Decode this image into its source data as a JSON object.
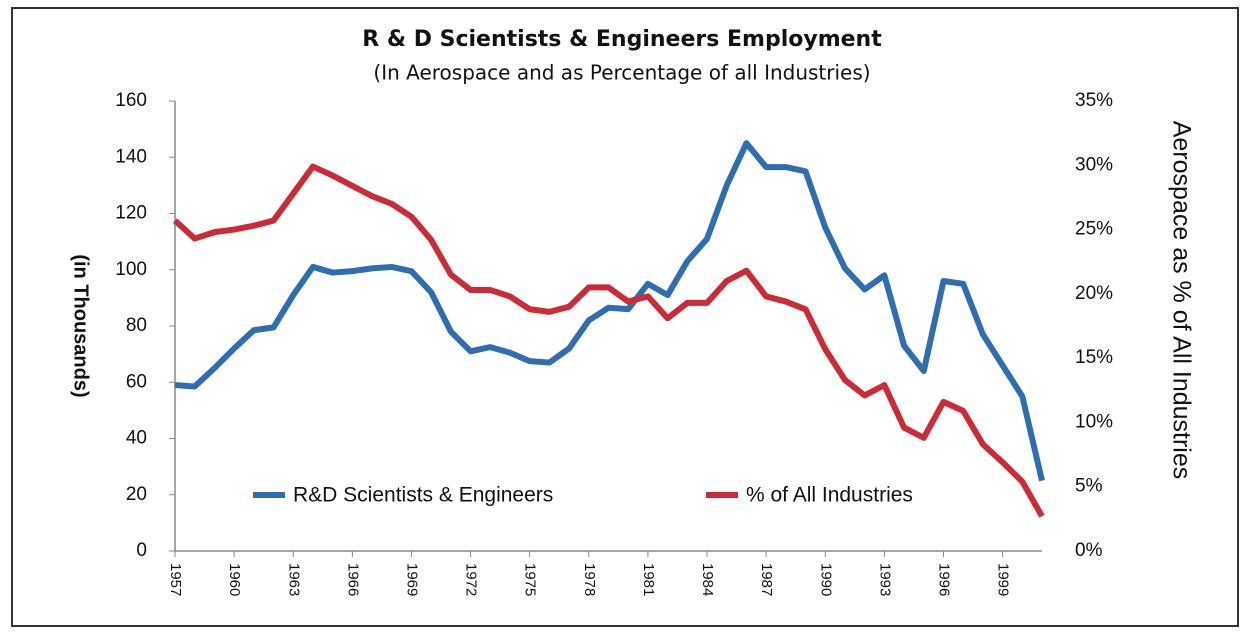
{
  "chart_data": {
    "type": "line",
    "title": "R & D Scientists & Engineers Employment",
    "subtitle": "(In Aerospace and as Percentage of all Industries)",
    "y_label": "(in Thousands)",
    "y2_label": "Aerospace as % of All Industries",
    "x": [
      1957,
      1958,
      1959,
      1960,
      1961,
      1962,
      1963,
      1964,
      1965,
      1966,
      1967,
      1968,
      1969,
      1970,
      1971,
      1972,
      1973,
      1974,
      1975,
      1976,
      1977,
      1978,
      1979,
      1980,
      1981,
      1982,
      1983,
      1984,
      1985,
      1986,
      1987,
      1988,
      1989,
      1990,
      1991,
      1992,
      1993,
      1994,
      1995,
      1996,
      1997,
      1998,
      1999,
      2000,
      2001
    ],
    "xlim": [
      1957,
      2001
    ],
    "xticks": [
      1957,
      1960,
      1963,
      1966,
      1969,
      1972,
      1975,
      1978,
      1981,
      1984,
      1987,
      1990,
      1993,
      1996,
      1999
    ],
    "ylim": [
      0,
      160
    ],
    "yticks": [
      0,
      20,
      40,
      60,
      80,
      100,
      120,
      140,
      160
    ],
    "y2lim": [
      0,
      35
    ],
    "y2ticks": [
      {
        "value": 0,
        "label": "0%"
      },
      {
        "value": 5,
        "label": "5%"
      },
      {
        "value": 10,
        "label": "10%"
      },
      {
        "value": 15,
        "label": "15%"
      },
      {
        "value": 20,
        "label": "20%"
      },
      {
        "value": 25,
        "label": "25%"
      },
      {
        "value": 30,
        "label": "30%"
      },
      {
        "value": 35,
        "label": "35%"
      }
    ],
    "series": [
      {
        "name": "R&D Scientists & Engineers",
        "color": "#2e6db0",
        "values": [
          59,
          58.5,
          65,
          72,
          78.5,
          79.5,
          91,
          101,
          99,
          99.5,
          100.5,
          101,
          99.5,
          92,
          78,
          71,
          72.5,
          70.5,
          67.5,
          67,
          72,
          82,
          86.5,
          86,
          95,
          91,
          103,
          111,
          130,
          145,
          136.5,
          136.5,
          135,
          115,
          100.5,
          93,
          98,
          73,
          64,
          96,
          95,
          77,
          66,
          55,
          25
        ]
      },
      {
        "name": "% of All Industries",
        "color": "#cc2b36",
        "axis": "y2",
        "values": [
          25.7,
          24.3,
          24.8,
          25,
          25.3,
          25.7,
          27.8,
          29.9,
          29.2,
          28.4,
          27.6,
          27,
          26,
          24.2,
          21.5,
          20.3,
          20.3,
          19.8,
          18.8,
          18.6,
          19,
          20.5,
          20.5,
          19.4,
          19.8,
          18.1,
          19.3,
          19.3,
          21,
          21.8,
          19.8,
          19.4,
          18.8,
          15.7,
          13.3,
          12.1,
          12.9,
          9.6,
          8.8,
          11.6,
          10.9,
          8.3,
          6.9,
          5.4,
          2.7
        ]
      }
    ]
  }
}
